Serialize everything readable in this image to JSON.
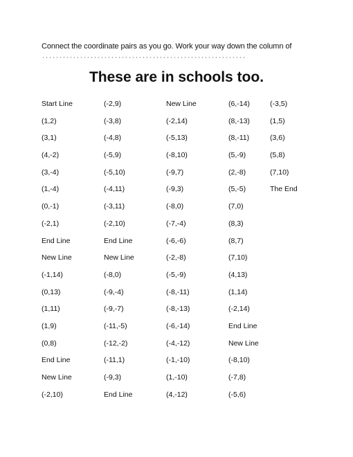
{
  "instructions": "Connect the coordinate pairs as you go. Work your way down the column of",
  "title": "These are in schools too.",
  "columns": [
    [
      "Start Line",
      "(1,2)",
      "(3,1)",
      "(4,-2)",
      "(3,-4)",
      "(1,-4)",
      "(0,-1)",
      "(-2,1)",
      "End Line",
      "New Line",
      "(-1,14)",
      "(0,13)",
      "(1,11)",
      "(1,9)",
      "(0,8)",
      "End Line",
      "New Line",
      "(-2,10)"
    ],
    [
      "(-2,9)",
      "(-3,8)",
      "(-4,8)",
      "(-5,9)",
      "(-5,10)",
      "(-4,11)",
      "(-3,11)",
      "(-2,10)",
      "End Line",
      "New Line",
      "(-8,0)",
      "(-9,-4)",
      "(-9,-7)",
      "(-11,-5)",
      "(-12,-2)",
      "(-11,1)",
      "(-9,3)",
      "End Line"
    ],
    [
      "New Line",
      "(-2,14)",
      "(-5,13)",
      "(-8,10)",
      "(-9,7)",
      "(-9,3)",
      "(-8,0)",
      "(-7,-4)",
      "(-6,-6)",
      "(-2,-8)",
      "(-5,-9)",
      "(-8,-11)",
      "(-8,-13)",
      "(-6,-14)",
      "(-4,-12)",
      "(-1,-10)",
      "(1,-10)",
      "(4,-12)"
    ],
    [
      "(6,-14)",
      "(8,-13)",
      "(8,-11)",
      "(5,-9)",
      "(2,-8)",
      "(5,-5)",
      "(7,0)",
      "(8,3)",
      "(8,7)",
      "(7,10)",
      "(4,13)",
      "(1,14)",
      "(-2,14)",
      "End Line",
      "New Line",
      "(-8,10)",
      "(-7,8)",
      "(-5,6)"
    ],
    [
      "(-3,5)",
      "(1,5)",
      "(3,6)",
      "(5,8)",
      "(7,10)",
      "The End"
    ]
  ]
}
